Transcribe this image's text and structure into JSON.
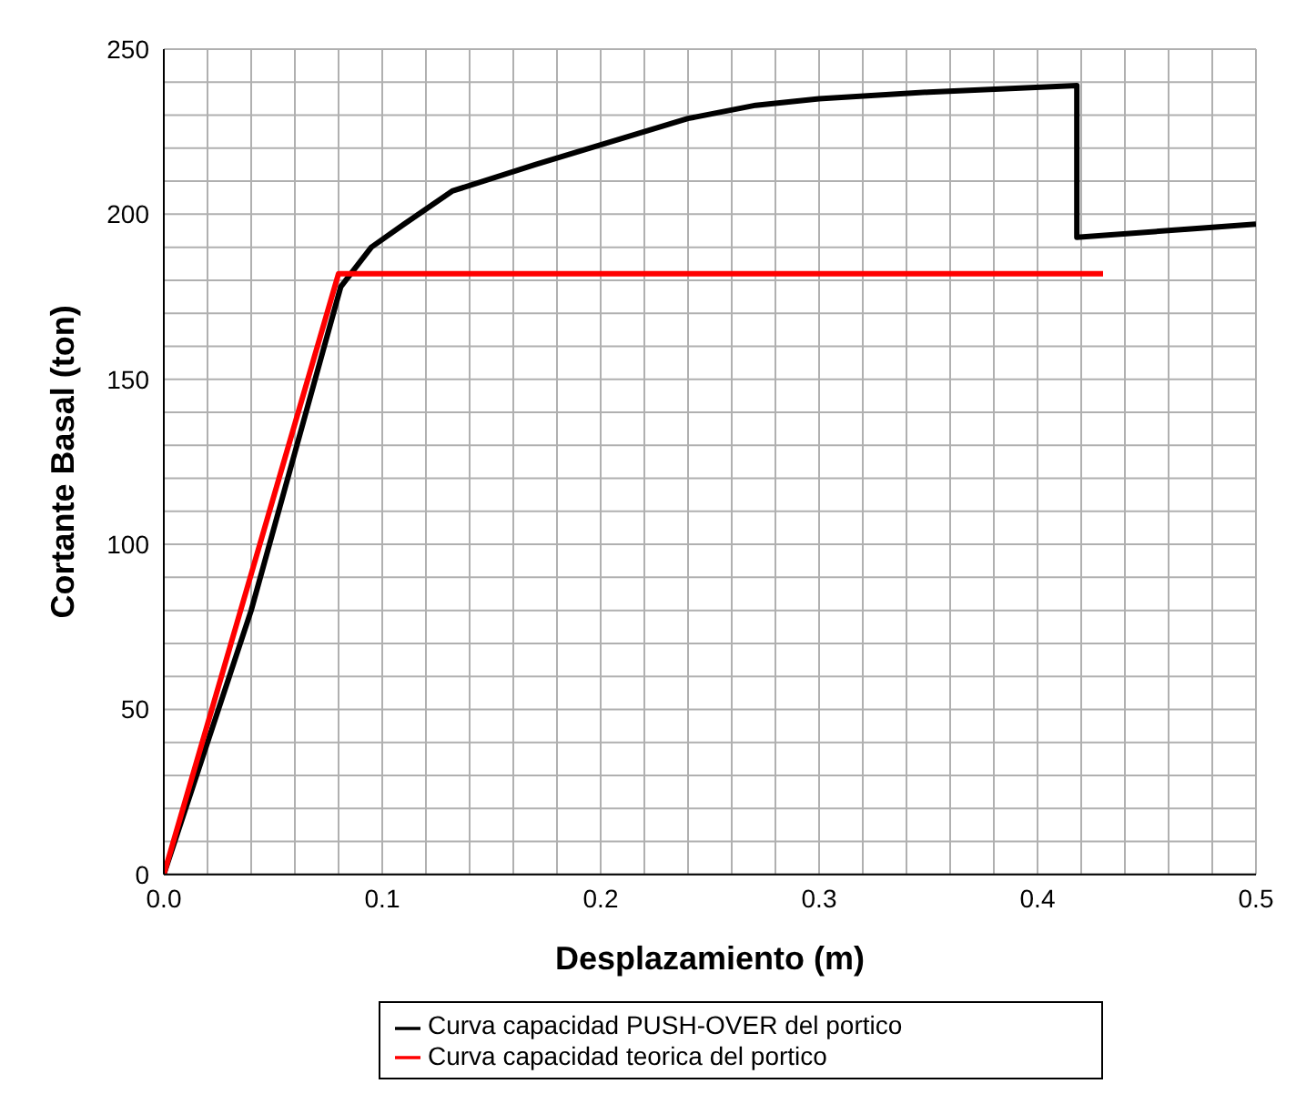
{
  "chart_data": {
    "type": "line",
    "xlabel": "Desplazamiento (m)",
    "ylabel": "Cortante Basal (ton)",
    "xlim": [
      0,
      0.5
    ],
    "xticks": [
      {
        "value": 0,
        "label": "0.0"
      },
      {
        "value": 0.1,
        "label": "0.1"
      },
      {
        "value": 0.2,
        "label": "0.2"
      },
      {
        "value": 0.3,
        "label": "0.3"
      },
      {
        "value": 0.4,
        "label": "0.4"
      },
      {
        "value": 0.5,
        "label": "0.5"
      }
    ],
    "ylim": [
      0,
      250
    ],
    "yticks": [
      0,
      50,
      100,
      150,
      200,
      250
    ],
    "grid": true,
    "legend": "bottom",
    "marker": "none",
    "line_style": "solid",
    "series": [
      {
        "name": "Curva capacidad PUSH-OVER del portico",
        "color": "#000000",
        "x": [
          0,
          0.04,
          0.081,
          0.095,
          0.11,
          0.132,
          0.17,
          0.2,
          0.24,
          0.271,
          0.3,
          0.35,
          0.418,
          0.418,
          0.5
        ],
        "values": [
          0,
          80,
          178,
          190,
          197,
          207,
          215,
          221,
          229,
          233,
          235,
          237,
          239,
          193,
          197
        ]
      },
      {
        "name": "Curva capacidad teorica del portico",
        "color": "#ff0000",
        "x": [
          0,
          0.08,
          0.43
        ],
        "values": [
          0,
          182,
          182
        ]
      }
    ]
  }
}
